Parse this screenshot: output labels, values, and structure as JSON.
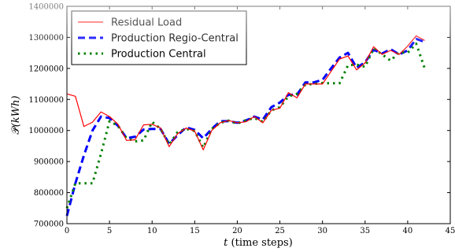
{
  "chart_data": {
    "type": "line",
    "xlabel_italic": "t",
    "xlabel_rest": " (time steps)",
    "ylabel_script": "𝒫",
    "ylabel_rest": "(kWh)",
    "xlim": [
      0,
      45
    ],
    "ylim": [
      700000,
      1400000
    ],
    "x_ticks": [
      0,
      5,
      10,
      15,
      20,
      25,
      30,
      35,
      40,
      45
    ],
    "y_ticks": [
      700000,
      800000,
      900000,
      1000000,
      1100000,
      1200000,
      1300000,
      1400000
    ],
    "grid": false,
    "legend_position": "upper-left",
    "series": [
      {
        "name": "Residual Load",
        "color": "#ff0000",
        "style": "solid",
        "x": [
          0,
          1,
          2,
          3,
          4,
          5,
          6,
          7,
          8,
          9,
          10,
          11,
          12,
          13,
          14,
          15,
          16,
          17,
          18,
          19,
          20,
          21,
          22,
          23,
          24,
          25,
          26,
          27,
          28,
          29,
          30,
          31,
          32,
          33,
          34,
          35,
          36,
          37,
          38,
          39,
          40,
          41,
          42
        ],
        "values": [
          1118000,
          1110000,
          1013000,
          1027000,
          1060000,
          1045000,
          1020000,
          968000,
          970000,
          1018000,
          1020000,
          1008000,
          948000,
          990000,
          1008000,
          998000,
          938000,
          1000000,
          1025000,
          1032000,
          1025000,
          1028000,
          1045000,
          1025000,
          1065000,
          1072000,
          1122000,
          1105000,
          1150000,
          1150000,
          1150000,
          1190000,
          1230000,
          1240000,
          1195000,
          1218000,
          1270000,
          1245000,
          1258000,
          1245000,
          1272000,
          1305000,
          1290000
        ]
      },
      {
        "name": "Production Regio-Central",
        "color": "#0000ff",
        "style": "dashed",
        "x": [
          0,
          1,
          2,
          3,
          4,
          5,
          6,
          7,
          8,
          9,
          10,
          11,
          12,
          13,
          14,
          15,
          16,
          17,
          18,
          19,
          20,
          21,
          22,
          23,
          24,
          25,
          26,
          27,
          28,
          29,
          30,
          31,
          32,
          33,
          34,
          35,
          36,
          37,
          38,
          39,
          40,
          41,
          42
        ],
        "values": [
          725000,
          830000,
          920000,
          1000000,
          1045000,
          1040000,
          1015000,
          975000,
          980000,
          1003000,
          1005000,
          1005000,
          957000,
          985000,
          1010000,
          1002000,
          975000,
          1005000,
          1030000,
          1030000,
          1025000,
          1032000,
          1045000,
          1035000,
          1075000,
          1090000,
          1115000,
          1115000,
          1155000,
          1155000,
          1163000,
          1200000,
          1235000,
          1250000,
          1202000,
          1220000,
          1260000,
          1248000,
          1262000,
          1245000,
          1258000,
          1295000,
          1285000
        ]
      },
      {
        "name": "Production Central",
        "color": "#008000",
        "style": "dotted",
        "x": [
          0,
          1,
          2,
          3,
          4,
          5,
          6,
          7,
          8,
          9,
          10,
          11,
          12,
          13,
          14,
          15,
          16,
          17,
          18,
          19,
          20,
          21,
          22,
          23,
          24,
          25,
          26,
          27,
          28,
          29,
          30,
          31,
          32,
          33,
          34,
          35,
          36,
          37,
          38,
          39,
          40,
          41,
          42
        ],
        "values": [
          750000,
          830000,
          830000,
          830000,
          925000,
          1030000,
          1015000,
          975000,
          965000,
          968000,
          1028000,
          1005000,
          955000,
          995000,
          1005000,
          998000,
          945000,
          1005000,
          1025000,
          1032000,
          1022000,
          1033000,
          1040000,
          1028000,
          1065000,
          1075000,
          1110000,
          1118000,
          1148000,
          1150000,
          1153000,
          1152000,
          1152000,
          1210000,
          1212000,
          1205000,
          1265000,
          1245000,
          1225000,
          1252000,
          1250000,
          1280000,
          1200000
        ]
      }
    ]
  }
}
